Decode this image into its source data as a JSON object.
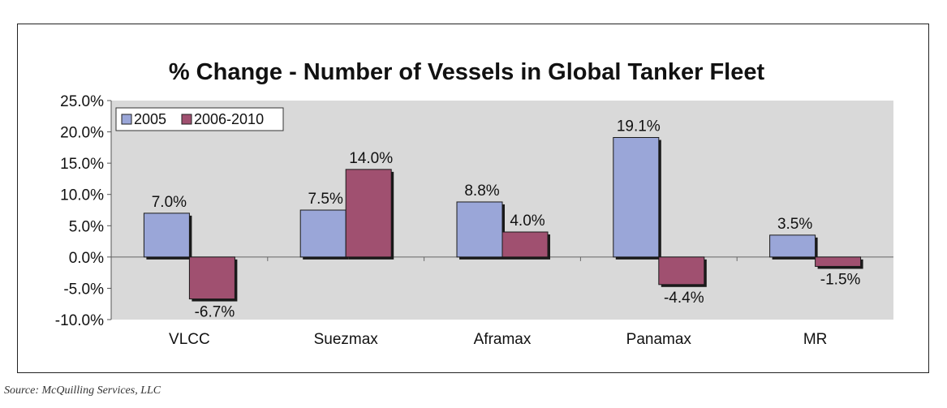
{
  "chart_data": {
    "type": "bar",
    "title": "% Change - Number of Vessels in Global Tanker Fleet",
    "categories": [
      "VLCC",
      "Suezmax",
      "Aframax",
      "Panamax",
      "MR"
    ],
    "series": [
      {
        "name": "2005",
        "values": [
          7.0,
          7.5,
          8.8,
          19.1,
          3.5
        ],
        "color": "#9AA6D8"
      },
      {
        "name": "2006-2010",
        "values": [
          -6.7,
          14.0,
          4.0,
          -4.4,
          -1.5
        ],
        "color": "#A05070"
      }
    ],
    "value_labels": [
      [
        "7.0%",
        "7.5%",
        "8.8%",
        "19.1%",
        "3.5%"
      ],
      [
        "-6.7%",
        "14.0%",
        "4.0%",
        "-4.4%",
        "-1.5%"
      ]
    ],
    "y_ticks": [
      "-10.0%",
      "-5.0%",
      "0.0%",
      "5.0%",
      "10.0%",
      "15.0%",
      "20.0%",
      "25.0%"
    ],
    "ylim": [
      -10,
      25
    ],
    "xlabel": "",
    "ylabel": "",
    "legend": "top-left",
    "plot_background": "#D9D9D9"
  },
  "source": "Source: McQuilling Services, LLC"
}
